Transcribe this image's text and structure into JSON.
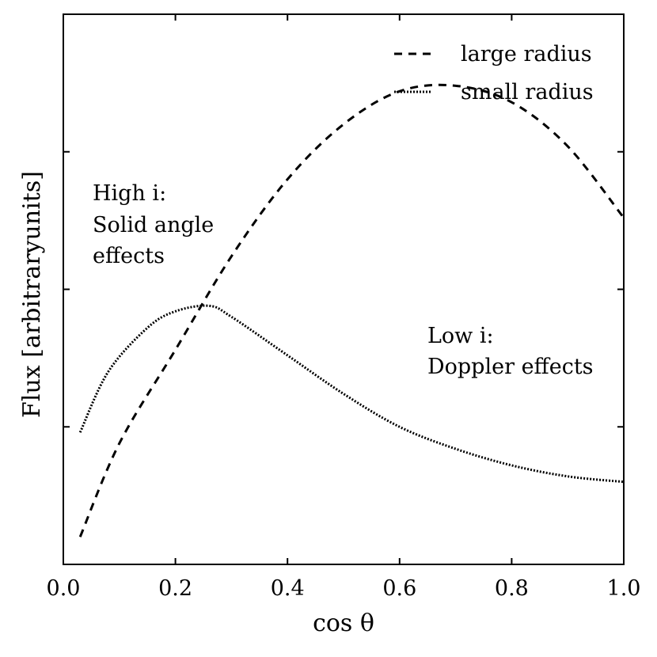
{
  "chart_data": {
    "type": "line",
    "title": "",
    "xlabel": "cos θ",
    "ylabel": "Flux [arbitraryunits]",
    "xlim": [
      0.0,
      1.0
    ],
    "ylim": [
      0.0,
      1.0
    ],
    "x_ticks": [
      "0.0",
      "0.2",
      "0.4",
      "0.6",
      "0.8",
      "1.0"
    ],
    "y_ticks_shown": false,
    "legend_position": "top-right",
    "series": [
      {
        "name": "large radius",
        "style": "dashed",
        "x": [
          0.03,
          0.1,
          0.2,
          0.3,
          0.4,
          0.5,
          0.6,
          0.7,
          0.8,
          0.9,
          1.0
        ],
        "y": [
          0.05,
          0.22,
          0.39,
          0.56,
          0.7,
          0.8,
          0.86,
          0.87,
          0.84,
          0.76,
          0.63
        ]
      },
      {
        "name": "small radius",
        "style": "dotted",
        "x": [
          0.03,
          0.08,
          0.15,
          0.2,
          0.26,
          0.3,
          0.4,
          0.5,
          0.6,
          0.7,
          0.8,
          0.9,
          1.0
        ],
        "y": [
          0.24,
          0.35,
          0.43,
          0.46,
          0.47,
          0.45,
          0.38,
          0.31,
          0.25,
          0.21,
          0.18,
          0.16,
          0.15
        ]
      }
    ],
    "annotations": [
      {
        "lines": [
          "High i:",
          "Solid angle",
          "effects"
        ]
      },
      {
        "lines": [
          "Low i:",
          "Doppler effects"
        ]
      }
    ]
  }
}
